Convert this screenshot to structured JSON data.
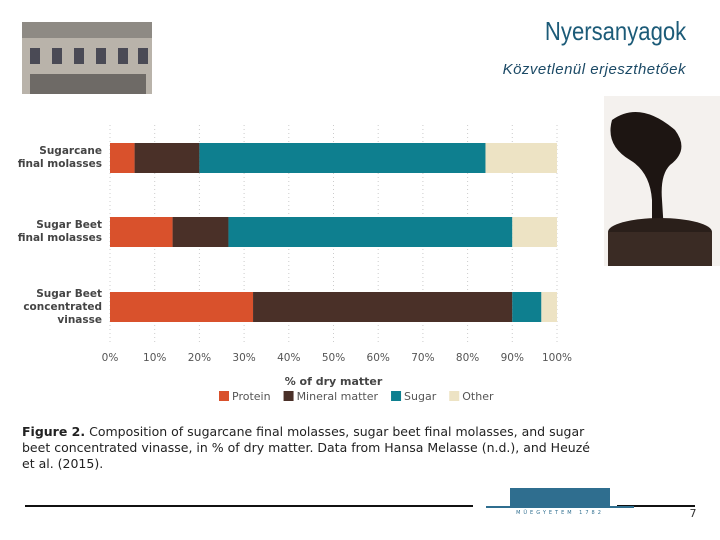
{
  "slide": {
    "title": "Nyersanyagok",
    "subtitle": "Közvetlenül erjeszthetőek",
    "logo_text": "MŰEGYETEM 1782",
    "page_number": "7"
  },
  "chart_data": {
    "type": "stacked-bar-horizontal",
    "categories": [
      "Sugarcane final molasses",
      "Sugar Beet final molasses",
      "Sugar Beet concentrated vinasse"
    ],
    "series": [
      {
        "name": "Protein",
        "color": "#d9512c",
        "values": [
          5.5,
          14,
          32
        ]
      },
      {
        "name": "Mineral matter",
        "color": "#4a3028",
        "values": [
          14.5,
          12.5,
          58
        ]
      },
      {
        "name": "Sugar",
        "color": "#0e7f8f",
        "values": [
          64,
          63.5,
          6.5
        ]
      },
      {
        "name": "Other",
        "color": "#ede3c4",
        "values": [
          16,
          10,
          3.5
        ]
      }
    ],
    "xlabel": "% of dry matter",
    "xlim": [
      0,
      100
    ],
    "xticks": [
      {
        "value": 0,
        "label": "0%"
      },
      {
        "value": 10,
        "label": "10%"
      },
      {
        "value": 20,
        "label": "20%"
      },
      {
        "value": 30,
        "label": "30%"
      },
      {
        "value": 40,
        "label": "40%"
      },
      {
        "value": 50,
        "label": "50%"
      },
      {
        "value": 60,
        "label": "60%"
      },
      {
        "value": 70,
        "label": "70%"
      },
      {
        "value": 80,
        "label": "80%"
      },
      {
        "value": 90,
        "label": "90%"
      },
      {
        "value": 100,
        "label": "100%"
      }
    ],
    "grid": true,
    "legend": "bottom",
    "caption_label": "Figure 2.",
    "caption": "Composition of sugarcane final molasses, sugar beet final molasses, and sugar beet concentrated vinasse, in % of dry matter. Data from Hansa Melasse (n.d.), and Heuzé et al. (2015)."
  }
}
